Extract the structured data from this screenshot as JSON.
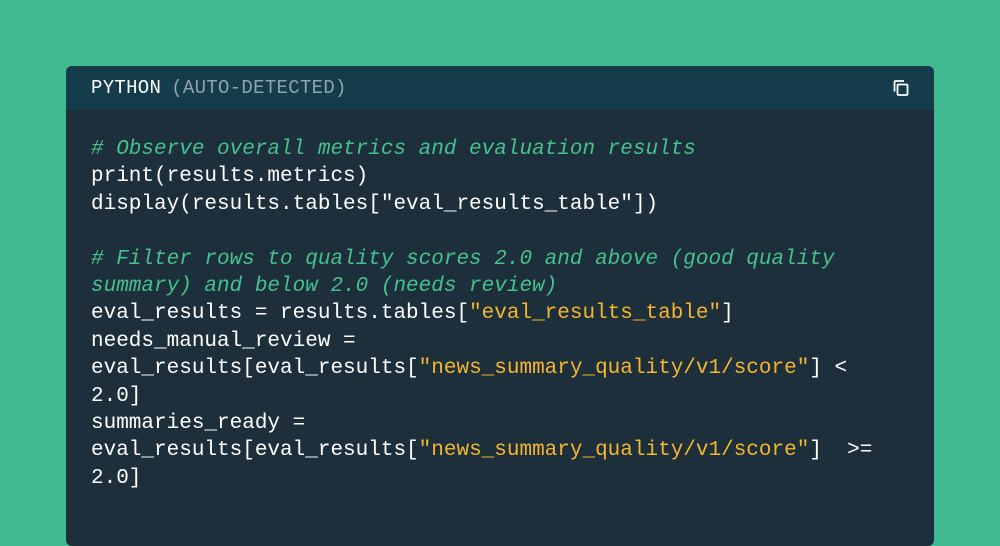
{
  "header": {
    "language": "PYTHON",
    "detection_note": "(AUTO-DETECTED)",
    "copy_icon": "copy-icon"
  },
  "colors": {
    "background": "#41b991",
    "card": "#1c2f3a",
    "header": "#143c4a",
    "comment": "#45c08f",
    "string": "#f5b52e",
    "text": "#ffffff"
  },
  "code_lines": [
    [
      [
        "comment",
        "# Observe overall metrics and evaluation results"
      ]
    ],
    [
      [
        "plain",
        "print(results.metrics)"
      ]
    ],
    [
      [
        "plain",
        "display(results.tables[\"eval_results_table\"])"
      ]
    ],
    [],
    [
      [
        "comment",
        "# Filter rows to quality scores 2.0 and above (good quality"
      ]
    ],
    [
      [
        "comment",
        "summary) and below 2.0 (needs review)"
      ]
    ],
    [
      [
        "plain",
        "eval_results = results.tables["
      ],
      [
        "string",
        "\"eval_results_table\""
      ],
      [
        "plain",
        "]"
      ]
    ],
    [
      [
        "plain",
        "needs_manual_review ="
      ]
    ],
    [
      [
        "plain",
        "eval_results[eval_results["
      ],
      [
        "string",
        "\"news_summary_quality/v1/score\""
      ],
      [
        "plain",
        "] <"
      ]
    ],
    [
      [
        "plain",
        "2.0]"
      ]
    ],
    [
      [
        "plain",
        "summaries_ready ="
      ]
    ],
    [
      [
        "plain",
        "eval_results[eval_results["
      ],
      [
        "string",
        "\"news_summary_quality/v1/score\""
      ],
      [
        "plain",
        "]  >="
      ]
    ],
    [
      [
        "plain",
        "2.0]"
      ]
    ]
  ]
}
